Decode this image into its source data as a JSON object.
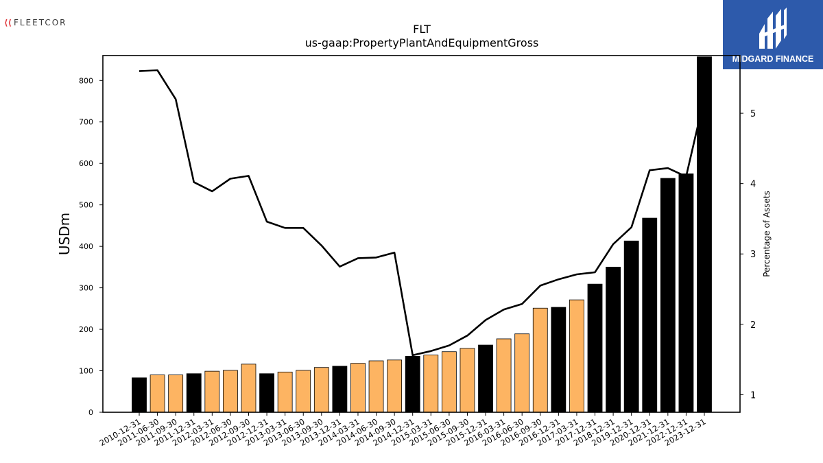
{
  "branding": {
    "left_logo_text": "FLEETCOR",
    "right_logo_text": "MIDGARD FINANCE"
  },
  "colors": {
    "actual_bar": "#000000",
    "estimate_bar": "#fdb462",
    "line": "#000000",
    "right_logo_bg": "#2d5aab"
  },
  "chart_data": {
    "type": "bar",
    "title": "FLT",
    "subtitle": "us-gaap:PropertyPlantAndEquipmentGross",
    "ylabel": "USDm",
    "y2label": "Percentage of Assets",
    "ylim": [
      0,
      860
    ],
    "y2lim": [
      0.75,
      5.82
    ],
    "yticks": [
      0,
      100,
      200,
      300,
      400,
      500,
      600,
      700,
      800
    ],
    "y2ticks": [
      1,
      2,
      3,
      4,
      5
    ],
    "categories": [
      "2010-12-31",
      "2011-06-30",
      "2011-09-30",
      "2011-12-31",
      "2012-03-31",
      "2012-06-30",
      "2012-09-30",
      "2012-12-31",
      "2013-03-31",
      "2013-06-30",
      "2013-09-30",
      "2013-12-31",
      "2014-03-31",
      "2014-06-30",
      "2014-09-30",
      "2014-12-31",
      "2015-03-31",
      "2015-06-30",
      "2015-09-30",
      "2015-12-31",
      "2016-03-31",
      "2016-06-30",
      "2016-09-30",
      "2016-12-31",
      "2017-03-31",
      "2017-12-31",
      "2018-12-31",
      "2019-12-31",
      "2020-12-31",
      "2021-12-31",
      "2022-12-31",
      "2023-12-31"
    ],
    "series": [
      {
        "type": "bar",
        "values": [
          83,
          90,
          90,
          93,
          99,
          101,
          116,
          93,
          97,
          101,
          108,
          111,
          118,
          124,
          126,
          135,
          138,
          146,
          154,
          162,
          177,
          189,
          251,
          253,
          271,
          309,
          350,
          413,
          468,
          564,
          575,
          857
        ],
        "annual": [
          true,
          false,
          false,
          true,
          false,
          false,
          false,
          true,
          false,
          false,
          false,
          true,
          false,
          false,
          false,
          true,
          false,
          false,
          false,
          true,
          false,
          false,
          false,
          true,
          false,
          true,
          true,
          true,
          true,
          true,
          true,
          true
        ]
      },
      {
        "type": "line",
        "axis": "right",
        "values": [
          5.6,
          5.61,
          5.2,
          4.02,
          3.89,
          4.07,
          4.11,
          3.46,
          3.37,
          3.37,
          3.12,
          2.82,
          2.94,
          2.95,
          3.02,
          1.56,
          1.62,
          1.7,
          1.84,
          2.06,
          2.21,
          2.29,
          2.55,
          2.64,
          2.71,
          2.74,
          3.14,
          3.38,
          4.19,
          4.22,
          4.1,
          5.22
        ]
      }
    ]
  }
}
